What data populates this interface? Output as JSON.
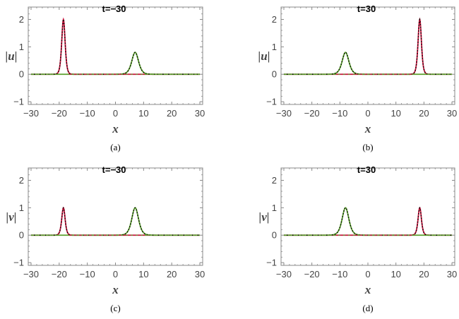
{
  "chart_data": [
    {
      "type": "line",
      "panel": "a",
      "caption": "(a)",
      "title": "t=−30",
      "xlabel": "x",
      "ylabel": "|u|",
      "xlim": [
        -31,
        31
      ],
      "ylim": [
        -1.1,
        2.45
      ],
      "xticks": [
        "−30",
        "−20",
        "−10",
        "0",
        "10",
        "20",
        "30"
      ],
      "yticks": [
        "−1",
        "0",
        "1",
        "2"
      ],
      "grid": false,
      "series": [
        {
          "color": "#c8143c",
          "style": "solid",
          "peaks": [
            {
              "center": -18.5,
              "amplitude": 2.0,
              "width": 0.8
            }
          ]
        },
        {
          "color": "#5aa02c",
          "style": "solid",
          "peaks": [
            {
              "center": 7.0,
              "amplitude": 0.8,
              "width": 1.6
            }
          ]
        },
        {
          "color": "#000000",
          "style": "dotted",
          "peaks": [
            {
              "center": -18.5,
              "amplitude": 2.0,
              "width": 0.8
            },
            {
              "center": 7.0,
              "amplitude": 0.8,
              "width": 1.6
            }
          ]
        }
      ]
    },
    {
      "type": "line",
      "panel": "b",
      "caption": "(b)",
      "title": "t=30",
      "xlabel": "x",
      "ylabel": "|u|",
      "xlim": [
        -31,
        31
      ],
      "ylim": [
        -1.1,
        2.45
      ],
      "xticks": [
        "−30",
        "−20",
        "−10",
        "0",
        "10",
        "20",
        "30"
      ],
      "yticks": [
        "−1",
        "0",
        "1",
        "2"
      ],
      "grid": false,
      "series": [
        {
          "color": "#c8143c",
          "style": "solid",
          "peaks": [
            {
              "center": 18.5,
              "amplitude": 2.0,
              "width": 0.8
            }
          ]
        },
        {
          "color": "#5aa02c",
          "style": "solid",
          "peaks": [
            {
              "center": -8.0,
              "amplitude": 0.8,
              "width": 1.6
            }
          ]
        },
        {
          "color": "#000000",
          "style": "dotted",
          "peaks": [
            {
              "center": 18.5,
              "amplitude": 2.0,
              "width": 0.8
            },
            {
              "center": -8.0,
              "amplitude": 0.8,
              "width": 1.6
            }
          ]
        }
      ]
    },
    {
      "type": "line",
      "panel": "c",
      "caption": "(c)",
      "title": "t=−30",
      "xlabel": "x",
      "ylabel": "|v|",
      "xlim": [
        -31,
        31
      ],
      "ylim": [
        -1.1,
        2.45
      ],
      "xticks": [
        "−30",
        "−20",
        "−10",
        "0",
        "10",
        "20",
        "30"
      ],
      "yticks": [
        "−1",
        "0",
        "1",
        "2"
      ],
      "grid": false,
      "series": [
        {
          "color": "#c8143c",
          "style": "solid",
          "peaks": [
            {
              "center": -18.5,
              "amplitude": 1.0,
              "width": 0.8
            }
          ]
        },
        {
          "color": "#5aa02c",
          "style": "solid",
          "peaks": [
            {
              "center": 7.0,
              "amplitude": 1.0,
              "width": 1.6
            }
          ]
        },
        {
          "color": "#000000",
          "style": "dotted",
          "peaks": [
            {
              "center": -18.5,
              "amplitude": 1.0,
              "width": 0.8
            },
            {
              "center": 7.0,
              "amplitude": 1.0,
              "width": 1.6
            }
          ]
        }
      ]
    },
    {
      "type": "line",
      "panel": "d",
      "caption": "(d)",
      "title": "t=30",
      "xlabel": "x",
      "ylabel": "|v|",
      "xlim": [
        -31,
        31
      ],
      "ylim": [
        -1.1,
        2.45
      ],
      "xticks": [
        "−30",
        "−20",
        "−10",
        "0",
        "10",
        "20",
        "30"
      ],
      "yticks": [
        "−1",
        "0",
        "1",
        "2"
      ],
      "grid": false,
      "series": [
        {
          "color": "#c8143c",
          "style": "solid",
          "peaks": [
            {
              "center": 18.5,
              "amplitude": 1.0,
              "width": 0.8
            }
          ]
        },
        {
          "color": "#5aa02c",
          "style": "solid",
          "peaks": [
            {
              "center": -8.0,
              "amplitude": 1.0,
              "width": 1.6
            }
          ]
        },
        {
          "color": "#000000",
          "style": "dotted",
          "peaks": [
            {
              "center": 18.5,
              "amplitude": 1.0,
              "width": 0.8
            },
            {
              "center": -8.0,
              "amplitude": 1.0,
              "width": 1.6
            }
          ]
        }
      ]
    }
  ]
}
